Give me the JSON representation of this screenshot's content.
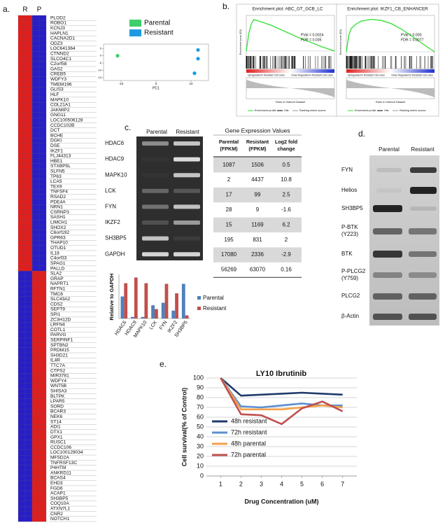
{
  "panel_labels": [
    "a.",
    "b.",
    "c.",
    "d.",
    "e."
  ],
  "heatmap": {
    "columns": [
      "R",
      "P"
    ],
    "groups": [
      {
        "values": [
          2,
          2,
          -2,
          -2
        ],
        "genes": [
          "PLOD2",
          "ROBO1",
          "KCNJ3",
          "HAPLN1",
          "CACNA2D1",
          "ODZ3",
          "LOC641364",
          "CTNND2",
          "SLCO4C1",
          "C2orf58",
          "GAS2",
          "CREB5",
          "WDFY3",
          "TMEM196",
          "GLIS3",
          "HLF",
          "MAPK10",
          "COL21A1",
          "JAKMIP2",
          "GNG11",
          "LOC100506128",
          "CCDC102B",
          "DCT",
          "BCHE",
          "DGKI",
          "DSE",
          "IKZF1",
          "FLJ44313",
          "HBE1",
          "STXBP5L",
          "SLFN5",
          "TP63",
          "LCA5",
          "TEX9",
          "TNFSF4",
          "RSAD2",
          "PDE4A",
          "NRN1",
          "CSRNP3",
          "SASH1",
          "LIMCH1",
          "SHOX2",
          "C6orf192",
          "GPR63",
          "THAP10",
          "OTUD1",
          "IL18",
          "C4orf33",
          "SPAG1",
          "PALLD"
        ]
      },
      {
        "values": [
          -2,
          -2,
          2,
          2
        ],
        "genes": [
          "SLA2",
          "GRAP",
          "NAPRT1",
          "RFTN1",
          "TMC6",
          "SLC43A2",
          "CDS2",
          "SEPT9",
          "SPI1",
          "ZC3H12D",
          "LRFN4",
          "COTL1",
          "PARVG",
          "SERPINF1",
          "SPTBN2",
          "PRDM15",
          "SH3D21",
          "IL4R",
          "TTC7A",
          "CTPS2",
          "MIR3781",
          "WDFY4",
          "WNT5B",
          "SHISA3",
          "BLTPK",
          "LPAR5",
          "SORD",
          "BCAR3",
          "NEK6",
          "ST14",
          "ADI1",
          "DTX1",
          "GPX1",
          "RUSC1",
          "CCDC106",
          "LOC100129034",
          "MFSD2A",
          "TNFRSF13C",
          "P4HTM",
          "ANKRD11",
          "BCAS4",
          "EHD3",
          "FGD6",
          "ACAP1",
          "SH3BP5",
          "COQ10A",
          "ATXN7L1",
          "CNR2",
          "NOTCH1"
        ]
      }
    ]
  },
  "chart_data": [
    {
      "type": "scatter",
      "xlabel": "PC1",
      "xlim": [
        -15,
        15
      ],
      "xticks": [
        -10,
        0,
        10
      ],
      "ylim": [
        -17,
        8
      ],
      "yticks": [
        5,
        0,
        -5,
        -10,
        -15
      ],
      "series": [
        {
          "name": "Parental",
          "color": "#3ecf6a",
          "x": [
            -11
          ],
          "y": [
            0
          ]
        },
        {
          "name": "Resistant",
          "color": "#1e9be0",
          "x": [
            12,
            12,
            11
          ],
          "y": [
            4,
            -2,
            -12
          ]
        }
      ]
    },
    {
      "type": "gsea",
      "title": "Enrichment plot: ABC_GT_GCB_LC",
      "annotation": [
        "PVal = 0.0024",
        "FDR = 0.035"
      ],
      "ylabel": "Enrichment score (ES)",
      "xlabel": "Rank in Ordered Dataset",
      "zone_labels": [
        "Upregulated in Resistant Cell Lines",
        "Down Regulated in Resistant Cell Lines"
      ],
      "legend": [
        "Enrichment profile",
        "Hits",
        "Ranking metric scores"
      ],
      "color": "#2ee02e",
      "xlim": [
        0,
        17500
      ],
      "ylim": [
        -0.05,
        0.5
      ],
      "x": [
        0,
        500,
        1000,
        1500,
        2500,
        5000,
        7500,
        10000,
        12500,
        15000,
        17500
      ],
      "values": [
        0,
        0.25,
        0.38,
        0.44,
        0.42,
        0.36,
        0.28,
        0.2,
        0.13,
        0.06,
        0
      ]
    },
    {
      "type": "gsea",
      "title": "Enrichment plot: IKZF1_CB_ENHANCER",
      "annotation": [
        "PVal = 0.000",
        "FDR = 0.0077"
      ],
      "ylabel": "Enrichment score (ES)",
      "xlabel": "Rank in Ordered Dataset",
      "zone_labels": [
        "Upregulated in Resistant Cell Lines",
        "Down Regulated in Resistant Cell Lines"
      ],
      "legend": [
        "Enrichment profile",
        "Hits",
        "Ranking metric scores"
      ],
      "color": "#2ee02e",
      "xlim": [
        0,
        17500
      ],
      "ylim": [
        -0.05,
        0.65
      ],
      "x": [
        0,
        500,
        1000,
        2000,
        3000,
        5000,
        7000,
        9000,
        11000,
        13000,
        15000,
        17500
      ],
      "values": [
        0,
        0.3,
        0.42,
        0.5,
        0.55,
        0.58,
        0.56,
        0.5,
        0.4,
        0.28,
        0.15,
        0
      ]
    },
    {
      "type": "bar",
      "ylabel": "Relative to GAPDH",
      "categories": [
        "HDAC6",
        "HDAC9",
        "MAPK10",
        "LCK",
        "FYN",
        "IKZF2",
        "SH3BP5"
      ],
      "ylim": [
        0,
        1.4
      ],
      "series": [
        {
          "name": "Parental",
          "color": "#4f81bd",
          "values": [
            0.7,
            0.05,
            0.05,
            0.42,
            0.5,
            0.25,
            1.1
          ]
        },
        {
          "name": "Resistant",
          "color": "#c0504d",
          "values": [
            1.12,
            1.3,
            1.12,
            0.3,
            1.1,
            0.8,
            0.1
          ]
        }
      ]
    },
    {
      "type": "line",
      "title": "LY10 Ibrutinib",
      "xlabel": "Drug Concentration (uM)",
      "ylabel": "Cell survival(% of Control)",
      "x": [
        1,
        2,
        3,
        4,
        5,
        6,
        7
      ],
      "xlim": [
        0.3,
        7.7
      ],
      "xticks": [
        1,
        2,
        3,
        4,
        5,
        6,
        7
      ],
      "ylim": [
        0,
        100
      ],
      "yticks": [
        0,
        10,
        20,
        30,
        40,
        50,
        60,
        70,
        80,
        90,
        100
      ],
      "grid": true,
      "legend_position": "lower-left",
      "series": [
        {
          "name": "48h resistant",
          "color": "#1f3b6b",
          "values": [
            100,
            82,
            83,
            84,
            85,
            84,
            83
          ]
        },
        {
          "name": "72h resistant",
          "color": "#5b8fd0",
          "values": [
            100,
            71,
            70,
            72,
            74,
            72,
            72
          ]
        },
        {
          "name": "48h parental",
          "color": "#f5a04a",
          "values": [
            100,
            68,
            68,
            68,
            70,
            72,
            70
          ]
        },
        {
          "name": "72h parental",
          "color": "#c0504d",
          "values": [
            100,
            63,
            62,
            53,
            69,
            76,
            66
          ]
        }
      ]
    }
  ],
  "gel": {
    "columns": [
      "Parental",
      "Resistant"
    ],
    "rows": [
      "HDAC6",
      "HDAC9",
      "MAPK10",
      "LCK",
      "FYN",
      "IKZF2",
      "SH3BP5",
      "GAPDH"
    ]
  },
  "table": {
    "title": "Gene Expression Values",
    "header": [
      [
        "Parental",
        "(FPKM)"
      ],
      [
        "Resistant",
        "(FPKM)"
      ],
      [
        "Log2 fold",
        "change"
      ]
    ],
    "rows": [
      [
        1087,
        1506,
        0.5
      ],
      [
        2,
        4437,
        10.8
      ],
      [
        17,
        99,
        2.5
      ],
      [
        28,
        9,
        -1.6
      ],
      [
        15,
        1169,
        6.2
      ],
      [
        195,
        831,
        2
      ],
      [
        17080,
        2336,
        -2.9
      ],
      [
        56269,
        63070,
        0.16
      ]
    ]
  },
  "blot": {
    "columns": [
      "Parental",
      "Resistant"
    ],
    "rows": [
      [
        "FYN"
      ],
      [
        "Helios"
      ],
      [
        "SH3BP5"
      ],
      [
        "P-BTK",
        "(Y223)"
      ],
      [
        "BTK"
      ],
      [
        "P-PLCG2",
        "(Y759)"
      ],
      [
        "PLCG2"
      ],
      [
        "β-Actin"
      ]
    ]
  }
}
